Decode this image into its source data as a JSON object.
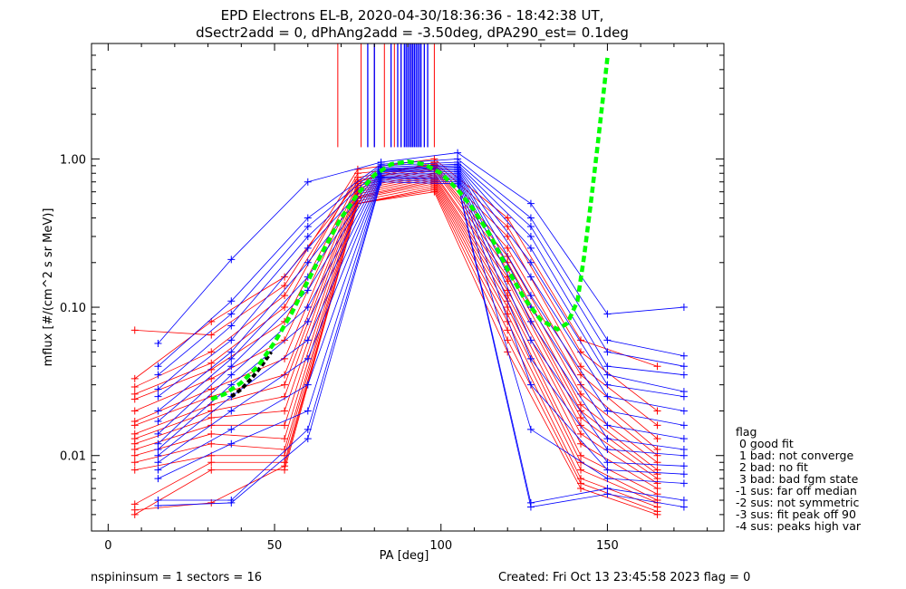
{
  "title_line1": "EPD Electrons EL-B, 2020-04-30/18:36:36 - 18:42:38 UT,",
  "title_line2": "dSectr2add = 0, dPhAng2add = -3.50deg, dPA290_est=   0.1deg",
  "xlabel": "PA [deg]",
  "ylabel": "mflux [#/(cm^2 s sr MeV)]",
  "footer": {
    "left": "nspininsum =  1  sectors = 16",
    "right": "Created: Fri Oct 13 23:45:58 2023   flag = 0"
  },
  "legend": {
    "title": "flag",
    "entries": [
      " 0 good fit",
      " 1 bad: not converge",
      " 2 bad: no fit",
      " 3 bad: bad fgm state",
      "-1 sus: far off median",
      "-2 sus: not symmetric",
      "-3 sus: fit peak off 90",
      "-4 sus: peaks high var"
    ]
  },
  "colors": {
    "series_a": "#ff0000",
    "series_b": "#0000ff",
    "fit": "#00ff00",
    "fit_low": "#000000",
    "axis": "#000000"
  },
  "chart_data": {
    "type": "line",
    "xlim": [
      -5,
      185
    ],
    "ylim": [
      0.0031,
      6.0
    ],
    "yscale": "log",
    "xticks": [
      0,
      50,
      100,
      150
    ],
    "xtick_labels": [
      "0",
      "50",
      "100",
      "150"
    ],
    "yticks": [
      0.01,
      0.1,
      1.0
    ],
    "ytick_labels": [
      "0.01",
      "0.10",
      "1.00"
    ],
    "pa_red": [
      8,
      31,
      53,
      75,
      98,
      120,
      142,
      165
    ],
    "pa_blue": [
      15,
      37,
      60,
      82,
      105,
      127,
      150,
      173
    ],
    "series": [
      {
        "name": "red",
        "color": "#ff0000",
        "curves": [
          [
            0.033,
            0.08,
            0.16,
            0.7,
            0.95,
            0.35,
            0.05,
            0.02
          ],
          [
            0.029,
            0.05,
            0.12,
            0.75,
            0.92,
            0.3,
            0.04,
            0.016
          ],
          [
            0.026,
            0.042,
            0.1,
            0.8,
            0.9,
            0.25,
            0.035,
            0.013
          ],
          [
            0.024,
            0.038,
            0.08,
            0.72,
            0.88,
            0.22,
            0.03,
            0.011
          ],
          [
            0.02,
            0.033,
            0.06,
            0.68,
            0.86,
            0.2,
            0.026,
            0.01
          ],
          [
            0.017,
            0.028,
            0.045,
            0.66,
            0.84,
            0.18,
            0.022,
            0.009
          ],
          [
            0.016,
            0.025,
            0.035,
            0.64,
            0.8,
            0.16,
            0.02,
            0.008
          ],
          [
            0.014,
            0.022,
            0.03,
            0.62,
            0.78,
            0.15,
            0.018,
            0.0075
          ],
          [
            0.013,
            0.02,
            0.025,
            0.6,
            0.76,
            0.13,
            0.016,
            0.007
          ],
          [
            0.012,
            0.018,
            0.02,
            0.58,
            0.74,
            0.12,
            0.014,
            0.0065
          ],
          [
            0.011,
            0.016,
            0.016,
            0.56,
            0.72,
            0.11,
            0.012,
            0.006
          ],
          [
            0.01,
            0.014,
            0.013,
            0.55,
            0.7,
            0.1,
            0.01,
            0.0055
          ],
          [
            0.009,
            0.012,
            0.011,
            0.54,
            0.68,
            0.09,
            0.009,
            0.005
          ],
          [
            0.008,
            0.01,
            0.01,
            0.52,
            0.66,
            0.08,
            0.008,
            0.0048
          ],
          [
            0.0047,
            0.009,
            0.009,
            0.5,
            0.64,
            0.07,
            0.007,
            0.0045
          ],
          [
            0.004,
            0.008,
            0.008,
            0.5,
            0.62,
            0.06,
            0.0065,
            0.0042
          ],
          [
            0.07,
            0.065,
            0.14,
            0.85,
            1.0,
            0.4,
            0.06,
            0.04
          ],
          [
            0.0043,
            0.0048,
            0.0085,
            0.5,
            0.6,
            0.05,
            0.006,
            0.004
          ]
        ]
      },
      {
        "name": "blue",
        "color": "#0000ff",
        "curves": [
          [
            0.057,
            0.21,
            0.7,
            0.95,
            1.1,
            0.5,
            0.09,
            0.1
          ],
          [
            0.04,
            0.11,
            0.4,
            0.92,
            1.0,
            0.4,
            0.06,
            0.047
          ],
          [
            0.035,
            0.09,
            0.35,
            0.9,
            0.95,
            0.35,
            0.05,
            0.04
          ],
          [
            0.028,
            0.075,
            0.3,
            0.88,
            0.92,
            0.3,
            0.04,
            0.035
          ],
          [
            0.025,
            0.06,
            0.25,
            0.86,
            0.9,
            0.25,
            0.035,
            0.027
          ],
          [
            0.02,
            0.05,
            0.2,
            0.85,
            0.88,
            0.2,
            0.03,
            0.025
          ],
          [
            0.017,
            0.045,
            0.16,
            0.84,
            0.86,
            0.16,
            0.025,
            0.02
          ],
          [
            0.014,
            0.04,
            0.13,
            0.83,
            0.84,
            0.12,
            0.02,
            0.016
          ],
          [
            0.012,
            0.035,
            0.1,
            0.82,
            0.82,
            0.1,
            0.016,
            0.013
          ],
          [
            0.011,
            0.03,
            0.08,
            0.8,
            0.8,
            0.08,
            0.013,
            0.011
          ],
          [
            0.01,
            0.025,
            0.06,
            0.78,
            0.78,
            0.06,
            0.011,
            0.01
          ],
          [
            0.009,
            0.02,
            0.045,
            0.76,
            0.76,
            0.045,
            0.009,
            0.0085
          ],
          [
            0.008,
            0.015,
            0.03,
            0.75,
            0.74,
            0.03,
            0.008,
            0.0075
          ],
          [
            0.007,
            0.012,
            0.02,
            0.74,
            0.72,
            0.015,
            0.007,
            0.0065
          ],
          [
            0.005,
            0.005,
            0.015,
            0.72,
            0.7,
            0.0048,
            0.006,
            0.005
          ],
          [
            0.0046,
            0.0048,
            0.013,
            0.7,
            0.68,
            0.0045,
            0.0055,
            0.0045
          ]
        ]
      }
    ],
    "fit": {
      "x": [
        31,
        35,
        40,
        45,
        50,
        55,
        60,
        65,
        70,
        75,
        80,
        85,
        90,
        95,
        100,
        105,
        110,
        115,
        120,
        125,
        130,
        135,
        138,
        141,
        143,
        145,
        147,
        149,
        150
      ],
      "y": [
        0.024,
        0.026,
        0.031,
        0.04,
        0.058,
        0.09,
        0.15,
        0.25,
        0.4,
        0.58,
        0.78,
        0.92,
        0.96,
        0.92,
        0.8,
        0.62,
        0.45,
        0.3,
        0.18,
        0.115,
        0.082,
        0.071,
        0.078,
        0.11,
        0.22,
        0.5,
        1.2,
        3.0,
        4.8
      ]
    },
    "fit_low": {
      "x": [
        37,
        40,
        43,
        46,
        49
      ],
      "y": [
        0.025,
        0.028,
        0.033,
        0.04,
        0.05
      ]
    },
    "pa_lines": {
      "red_x": [
        69,
        76,
        80,
        83,
        86,
        88,
        90,
        91,
        93,
        95,
        96,
        98
      ],
      "blue_x": [
        78,
        80,
        85,
        87,
        88,
        89,
        89.5,
        90,
        90.5,
        91,
        91.5,
        92,
        92.5,
        93,
        93.5,
        94,
        95,
        96
      ],
      "y_bottom": 1.2
    }
  }
}
